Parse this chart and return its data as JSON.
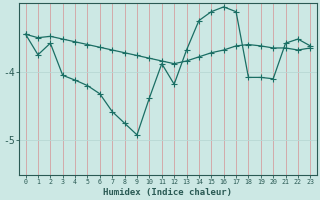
{
  "xlabel": "Humidex (Indice chaleur)",
  "ylabel": "",
  "background_color": "#cce8e4",
  "grid_color_v": "#d4a0a0",
  "grid_color_h": "#b8d8d4",
  "line_color": "#1a6e64",
  "x_values": [
    0,
    1,
    2,
    3,
    4,
    5,
    6,
    7,
    8,
    9,
    10,
    11,
    12,
    13,
    14,
    15,
    16,
    17,
    18,
    19,
    20,
    21,
    22,
    23
  ],
  "line1_y": [
    -3.45,
    -3.5,
    -3.48,
    -3.52,
    -3.56,
    -3.6,
    -3.64,
    -3.68,
    -3.72,
    -3.76,
    -3.8,
    -3.84,
    -3.88,
    -3.84,
    -3.78,
    -3.72,
    -3.68,
    -3.62,
    -3.6,
    -3.62,
    -3.65,
    -3.65,
    -3.68,
    -3.65
  ],
  "line2_y": [
    -3.45,
    -3.75,
    -3.58,
    -4.05,
    -4.12,
    -4.2,
    -4.32,
    -4.58,
    -4.75,
    -4.92,
    -4.38,
    -3.88,
    -4.18,
    -3.68,
    -3.25,
    -3.12,
    -3.05,
    -3.12,
    -4.08,
    -4.08,
    -4.1,
    -3.58,
    -3.52,
    -3.62
  ],
  "ylim": [
    -5.5,
    -3.0
  ],
  "yticks": [
    -5.0,
    -4.0
  ],
  "xlim": [
    -0.5,
    23.5
  ],
  "font_color": "#2a5a54",
  "tick_color": "#2a5a54",
  "marker": "+",
  "marker_size": 4.0,
  "linewidth": 0.9
}
